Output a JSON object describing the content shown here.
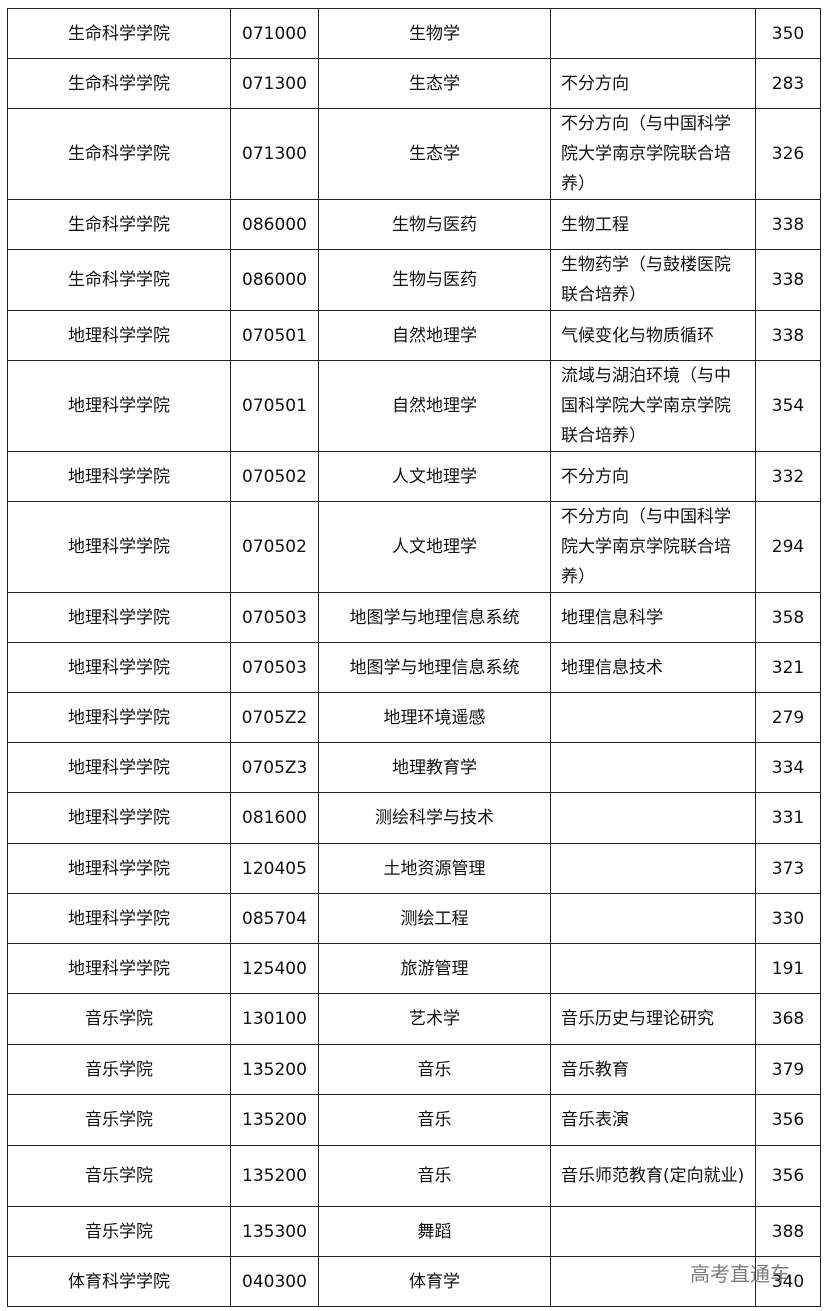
{
  "table": {
    "rows": [
      [
        "生命科学学院",
        "071000",
        "生物学",
        null,
        "350"
      ],
      [
        "生命科学学院",
        "071300",
        "生态学",
        "不分方向",
        "283"
      ],
      [
        "生命科学学院",
        "071300",
        "生态学",
        "不分方向（与中国科学院大学南京学院联合培养）",
        "326"
      ],
      [
        "生命科学学院",
        "086000",
        "生物与医药",
        "生物工程",
        "338"
      ],
      [
        "生命科学学院",
        "086000",
        "生物与医药",
        "生物药学（与鼓楼医院联合培养）",
        "338"
      ],
      [
        "地理科学学院",
        "070501",
        "自然地理学",
        "气候变化与物质循环",
        "338"
      ],
      [
        "地理科学学院",
        "070501",
        "自然地理学",
        "流域与湖泊环境（与中国科学院大学南京学院联合培养）",
        "354"
      ],
      [
        "地理科学学院",
        "070502",
        "人文地理学",
        "不分方向",
        "332"
      ],
      [
        "地理科学学院",
        "070502",
        "人文地理学",
        "不分方向（与中国科学院大学南京学院联合培养）",
        "294"
      ],
      [
        "地理科学学院",
        "070503",
        "地图学与地理信息系统",
        "地理信息科学",
        "358"
      ],
      [
        "地理科学学院",
        "070503",
        "地图学与地理信息系统",
        "地理信息技术",
        "321"
      ],
      [
        "地理科学学院",
        "0705Z2",
        "地理环境遥感",
        null,
        "279"
      ],
      [
        "地理科学学院",
        "0705Z3",
        "地理教育学",
        null,
        "334"
      ],
      [
        "地理科学学院",
        "081600",
        "测绘科学与技术",
        null,
        "331"
      ],
      [
        "地理科学学院",
        "120405",
        "土地资源管理",
        null,
        "373"
      ],
      [
        "地理科学学院",
        "085704",
        "测绘工程",
        null,
        "330"
      ],
      [
        "地理科学学院",
        "125400",
        "旅游管理",
        null,
        "191"
      ],
      [
        "音乐学院",
        "130100",
        "艺术学",
        "音乐历史与理论研究",
        "368"
      ],
      [
        "音乐学院",
        "135200",
        "音乐",
        "音乐教育",
        "379"
      ],
      [
        "音乐学院",
        "135200",
        "音乐",
        "音乐表演",
        "356"
      ],
      [
        "音乐学院",
        "135200",
        "音乐",
        "音乐师范教育(定向就业)",
        "356"
      ],
      [
        "音乐学院",
        "135300",
        "舞蹈",
        null,
        "388"
      ],
      [
        "体育科学学院",
        "040300",
        "体育学",
        null,
        "340"
      ]
    ]
  },
  "watermark": "高考直通车"
}
